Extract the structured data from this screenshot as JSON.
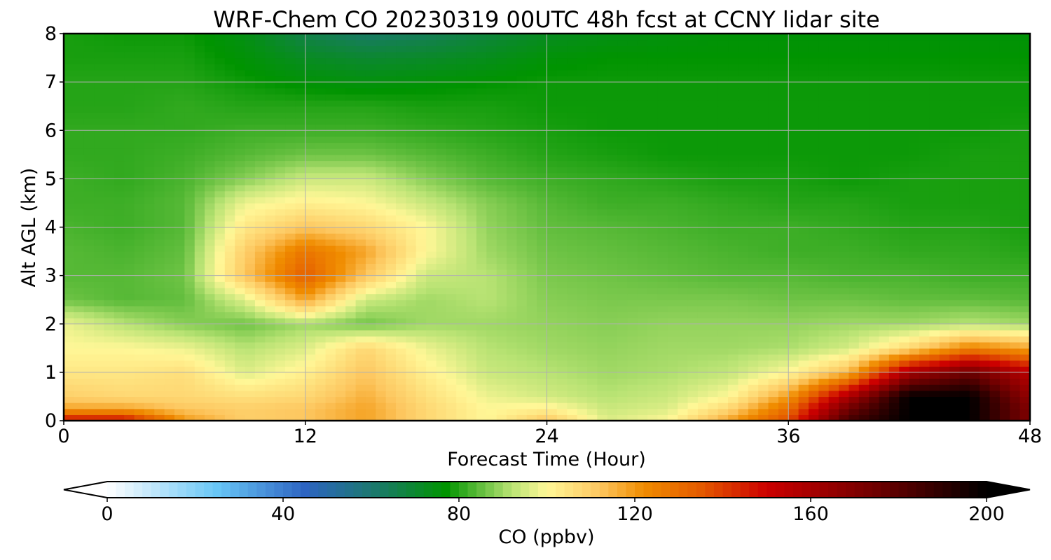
{
  "chart_data": {
    "type": "heatmap",
    "title": "WRF-Chem CO  20230319 00UTC 48h fcst at CCNY lidar site",
    "xlabel": "Forecast Time (Hour)",
    "ylabel": "Alt AGL (km)",
    "xlim": [
      0,
      48
    ],
    "ylim": [
      0,
      8
    ],
    "xticks": [
      0,
      12,
      24,
      36,
      48
    ],
    "yticks": [
      0,
      1,
      2,
      3,
      4,
      5,
      6,
      7,
      8
    ],
    "grid": true,
    "x": [
      0,
      3,
      6,
      9,
      12,
      15,
      18,
      21,
      24,
      27,
      30,
      33,
      36,
      39,
      42,
      45,
      48
    ],
    "y": [
      0,
      0.25,
      0.5,
      1,
      1.5,
      2,
      2.5,
      3,
      3.5,
      4,
      4.5,
      5,
      5.5,
      6,
      6.5,
      7,
      7.5,
      8
    ],
    "z": [
      [
        150,
        150,
        120,
        110,
        112,
        118,
        108,
        100,
        112,
        96,
        100,
        118,
        138,
        185,
        200,
        200,
        170
      ],
      [
        118,
        118,
        112,
        110,
        112,
        118,
        108,
        100,
        102,
        94,
        96,
        108,
        130,
        175,
        200,
        200,
        170
      ],
      [
        110,
        108,
        108,
        106,
        108,
        116,
        106,
        98,
        95,
        92,
        94,
        100,
        120,
        160,
        200,
        200,
        165
      ],
      [
        104,
        104,
        106,
        96,
        102,
        112,
        102,
        94,
        92,
        90,
        91,
        93,
        100,
        115,
        160,
        175,
        155
      ],
      [
        100,
        100,
        98,
        92,
        96,
        108,
        98,
        92,
        90,
        89,
        90,
        90,
        91,
        95,
        108,
        125,
        118
      ],
      [
        98,
        92,
        88,
        86,
        90,
        86,
        90,
        90,
        89,
        88,
        89,
        89,
        89,
        90,
        90,
        92,
        90
      ],
      [
        86,
        84,
        85,
        96,
        118,
        94,
        90,
        92,
        88,
        87,
        87,
        87,
        86,
        86,
        85,
        85,
        84
      ],
      [
        84,
        84,
        86,
        112,
        134,
        112,
        94,
        92,
        87,
        86,
        85,
        84,
        84,
        83,
        83,
        82,
        82
      ],
      [
        84,
        83,
        85,
        110,
        128,
        118,
        100,
        90,
        86,
        85,
        84,
        83,
        82,
        82,
        81,
        81,
        80
      ],
      [
        83,
        82,
        84,
        104,
        112,
        108,
        100,
        89,
        85,
        84,
        83,
        82,
        82,
        81,
        80,
        80,
        79
      ],
      [
        82,
        82,
        84,
        98,
        102,
        100,
        94,
        88,
        84,
        82,
        82,
        81,
        80,
        80,
        79,
        79,
        79
      ],
      [
        82,
        81,
        83,
        88,
        94,
        94,
        88,
        84,
        82,
        81,
        80,
        79,
        79,
        78,
        79,
        79,
        79
      ],
      [
        81,
        81,
        82,
        84,
        86,
        86,
        84,
        82,
        80,
        79,
        78,
        78,
        78,
        78,
        78,
        79,
        79
      ],
      [
        81,
        81,
        81,
        82,
        82,
        82,
        81,
        80,
        79,
        78,
        78,
        78,
        78,
        78,
        78,
        78,
        79
      ],
      [
        80,
        80,
        81,
        80,
        80,
        80,
        79,
        79,
        78,
        78,
        78,
        78,
        78,
        78,
        78,
        78,
        78
      ],
      [
        80,
        80,
        80,
        78,
        76,
        75,
        76,
        77,
        78,
        78,
        78,
        78,
        78,
        78,
        78,
        78,
        78
      ],
      [
        79,
        79,
        79,
        76,
        72,
        70,
        71,
        73,
        76,
        77,
        77,
        77,
        77,
        77,
        77,
        77,
        77
      ],
      [
        79,
        78,
        78,
        74,
        66,
        62,
        64,
        68,
        72,
        74,
        75,
        76,
        76,
        76,
        76,
        76,
        76
      ]
    ],
    "colorbar": {
      "label": "CO  (ppbv)",
      "range": [
        0,
        200
      ],
      "ticks": [
        0,
        40,
        80,
        120,
        160,
        200
      ],
      "extend": "both",
      "colors": [
        {
          "v": 0,
          "c": "#ffffff"
        },
        {
          "v": 25,
          "c": "#68c6f6"
        },
        {
          "v": 45,
          "c": "#2d64c2"
        },
        {
          "v": 62,
          "c": "#197a66"
        },
        {
          "v": 77,
          "c": "#009400"
        },
        {
          "v": 92,
          "c": "#b9e374"
        },
        {
          "v": 100,
          "c": "#fff797"
        },
        {
          "v": 112,
          "c": "#fdc760"
        },
        {
          "v": 122,
          "c": "#f08c00"
        },
        {
          "v": 135,
          "c": "#e45a00"
        },
        {
          "v": 150,
          "c": "#cc0000"
        },
        {
          "v": 175,
          "c": "#6e0000"
        },
        {
          "v": 200,
          "c": "#000000"
        }
      ]
    }
  }
}
